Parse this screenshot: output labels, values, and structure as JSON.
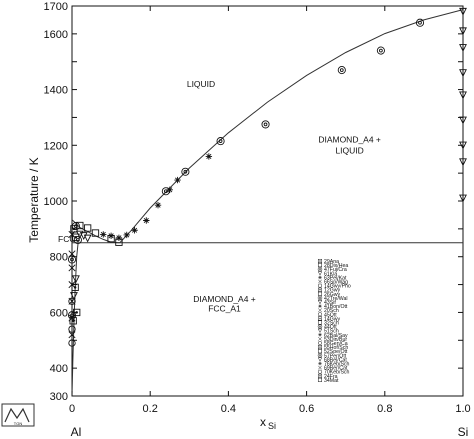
{
  "chart_data": {
    "type": "scatter",
    "title": "",
    "xlabel_prefix": "x",
    "xlabel_sub": "Si",
    "ylabel": "Temperature / K",
    "xlim": [
      0,
      1.0
    ],
    "ylim": [
      300,
      1700
    ],
    "x_ticks": [
      0,
      0.2,
      0.4,
      0.6,
      0.8,
      1.0
    ],
    "x_tick_labels": [
      "0",
      "0.2",
      "0.4",
      "0.6",
      "0.8",
      "1.0"
    ],
    "y_ticks": [
      300,
      400,
      500,
      600,
      700,
      800,
      900,
      1000,
      1100,
      1200,
      1300,
      1400,
      1500,
      1600,
      1700
    ],
    "y_tick_labels": [
      "300",
      "400",
      "",
      "600",
      "",
      "800",
      "",
      "1000",
      "",
      "1200",
      "",
      "1400",
      "",
      "1600",
      "1700"
    ],
    "grid": false,
    "legend_position": "bottom-right",
    "end_labels": {
      "left": "Al",
      "right": "Si"
    },
    "phase_labels": [
      {
        "text": "LIQUID",
        "x": 0.33,
        "y": 1410
      },
      {
        "text": "DIAMOND_A4 +",
        "x": 0.71,
        "y": 1210
      },
      {
        "text": "LIQUID",
        "x": 0.71,
        "y": 1170
      },
      {
        "text": "DIAMOND_A4 +",
        "x": 0.39,
        "y": 638
      },
      {
        "text": "FCC_A1",
        "x": 0.39,
        "y": 603
      },
      {
        "text": "FCC",
        "x": -0.02,
        "y": 853
      }
    ],
    "eutectic_temperature": 850,
    "liquidus_al_side": {
      "x": [
        0.0,
        0.01,
        0.02,
        0.04,
        0.06,
        0.08,
        0.1,
        0.122
      ],
      "y": [
        933,
        920,
        905,
        890,
        875,
        862,
        852,
        850
      ]
    },
    "liquidus_si_side": {
      "x": [
        0.122,
        0.15,
        0.2,
        0.3,
        0.4,
        0.5,
        0.6,
        0.7,
        0.8,
        0.9,
        1.0
      ],
      "y": [
        850,
        892,
        975,
        1118,
        1245,
        1355,
        1451,
        1533,
        1601,
        1650,
        1687
      ]
    },
    "solvus": {
      "x": [
        0.0,
        0.002,
        0.004,
        0.006,
        0.008,
        0.01,
        0.012,
        0.0155
      ],
      "y": [
        300,
        420,
        520,
        600,
        680,
        740,
        800,
        850
      ]
    },
    "series": [
      {
        "name": "29Ana",
        "marker": "square-center",
        "x": [
          0.005,
          0.01,
          0.012,
          0.008,
          0.003
        ],
        "y": [
          900,
          870,
          600,
          690,
          570
        ]
      },
      {
        "name": "28Dix/Hea",
        "marker": "square",
        "x": [
          0.02,
          0.04,
          0.06,
          0.1,
          0.12
        ],
        "y": [
          912,
          903,
          885,
          865,
          852
        ]
      },
      {
        "name": "47Fuj/Cra",
        "marker": "circle-dot",
        "x": [
          0.24,
          0.29,
          0.38,
          0.495,
          0.69,
          0.79,
          0.89
        ],
        "y": [
          1035,
          1105,
          1215,
          1275,
          1470,
          1540,
          1640
        ]
      },
      {
        "name": "63Pel/Kat",
        "marker": "circle-dot",
        "x": [
          0.0,
          0.0,
          0.01,
          0.015
        ],
        "y": [
          790,
          590,
          910,
          860
        ]
      },
      {
        "name": "14Gwy/Pho",
        "marker": "triangle-down",
        "x": [
          0.005,
          0.01,
          0.02,
          0.03,
          0.04,
          1.0,
          1.0,
          1.0,
          1.0,
          1.0,
          1.0,
          1.0,
          1.0,
          1.0
        ],
        "y": [
          660,
          720,
          880,
          875,
          866,
          1680,
          1610,
          1550,
          1460,
          1380,
          1290,
          1200,
          1140,
          1010
        ]
      },
      {
        "name": "08Gwy",
        "marker": "star",
        "x": [
          0.08,
          0.1,
          0.12,
          0.14,
          0.16,
          0.19,
          0.22,
          0.25,
          0.27,
          0.35
        ],
        "y": [
          880,
          875,
          868,
          878,
          895,
          930,
          985,
          1040,
          1075,
          1160
        ]
      },
      {
        "name": "27Mon",
        "marker": "x",
        "x": [
          0.0,
          0.0,
          0.0,
          0.0,
          0.0,
          0.0,
          0.0
        ],
        "y": [
          880,
          810,
          760,
          700,
          640,
          580,
          520
        ]
      },
      {
        "name": "34Mat",
        "marker": "circle",
        "x": [
          0.0,
          0.0,
          0.0
        ],
        "y": [
          490,
          540,
          640
        ]
      }
    ],
    "legend_entries": [
      "29Ana",
      "28Dix/Hea",
      "47Fuj/Cra",
      "61Kla",
      "63Pel/Kat",
      "66Sp/Wag",
      "14Gwy/Pho",
      "12Gwy",
      "26Gwy",
      "42Tre/Wal",
      "43Sif",
      "41Bon/Ott",
      "20Sch",
      "45Ott",
      "14Gwy",
      "32Sch",
      "44Ott",
      "51Sch",
      "62Bal/Say",
      "53Din/Bur",
      "58Gen/Ca",
      "55Hof/Sch",
      "52Spe/Ott",
      "57Per/Ott",
      "68Bel/Cat",
      "76Keb/Sch",
      "69Ber/Cat",
      "70Keb/Sch",
      "24Fra",
      "34Mat"
    ],
    "logo": {
      "text": "TGN"
    }
  }
}
